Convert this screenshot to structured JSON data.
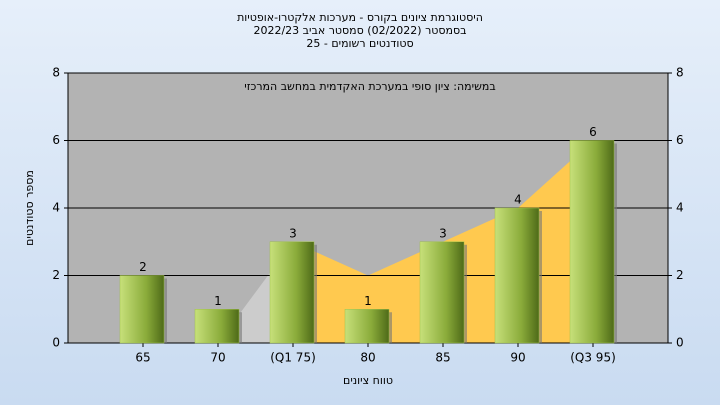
{
  "chart_data": {
    "type": "bar",
    "title": [
      "היסטוגרמת ציונים בקורס - מערכות אלקטרו-אופטיות",
      "בסמסטר (02/2022) סמסטר אביב 2022/23",
      "סטודנטים רשומים - 25"
    ],
    "annotation": "במשימה: ציון סופי במערכת האקדמית במחשב המרכזי",
    "x_label": "טווח ציונים",
    "y_label": "מספר סטודנטים",
    "categories": [
      "65",
      "70",
      "(Q1 75)",
      "80",
      "85",
      "90",
      "(Q3 95)"
    ],
    "values": [
      2,
      1,
      3,
      1,
      3,
      4,
      6
    ],
    "color": "#9fc24a",
    "area": {
      "values": [
        null,
        0,
        3,
        2,
        3,
        4,
        6
      ],
      "segment_colors": [
        "#cccccc",
        "#cccccc",
        "#ffc94f",
        "#ffc94f",
        "#ffc94f",
        "#ffc94f"
      ]
    },
    "ylim": [
      0,
      8
    ],
    "yticks": [
      0,
      2,
      4,
      6,
      8
    ],
    "y2lim": [
      0,
      8
    ],
    "y2ticks": [
      0,
      2,
      4,
      6,
      8
    ],
    "grid": true
  }
}
